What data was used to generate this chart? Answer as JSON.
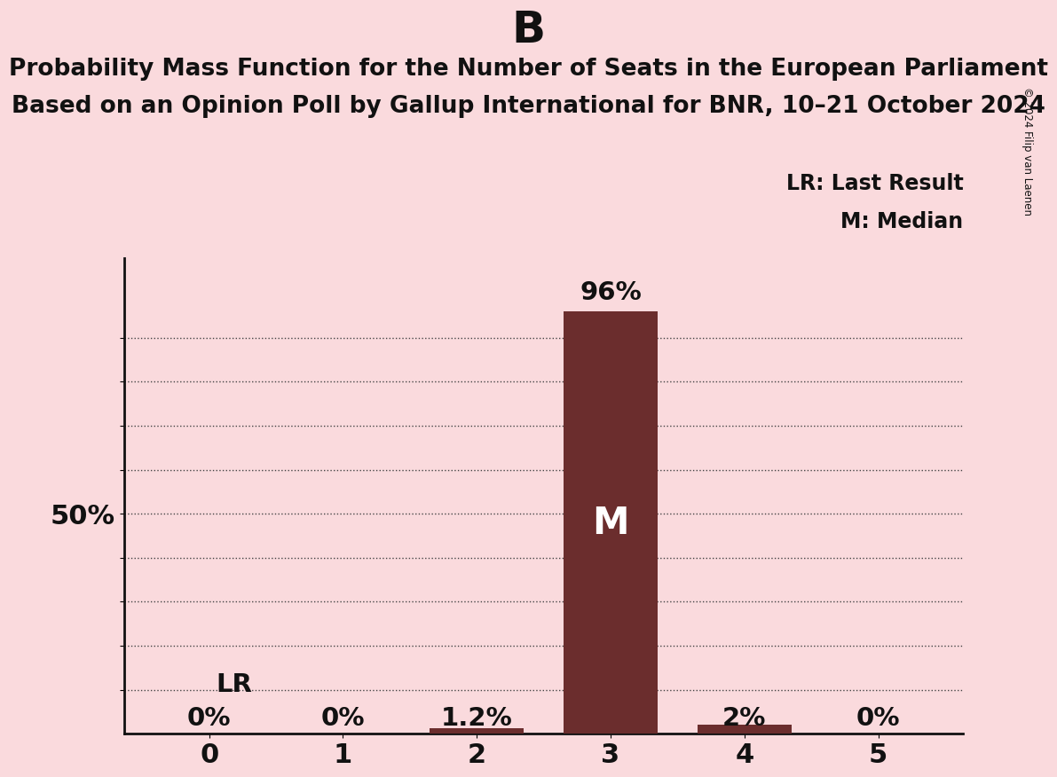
{
  "title_letter": "B",
  "title_line1": "Probability Mass Function for the Number of Seats in the European Parliament",
  "title_line2": "Based on an Opinion Poll by Gallup International for BNR, 10–21 October 2024",
  "categories": [
    0,
    1,
    2,
    3,
    4,
    5
  ],
  "values": [
    0.0,
    0.0,
    0.012,
    0.96,
    0.02,
    0.0
  ],
  "bar_color": "#6B2D2D",
  "background_color": "#FADADD",
  "label_color": "#111111",
  "bar_labels": [
    "0%",
    "0%",
    "1.2%",
    "96%",
    "2%",
    "0%"
  ],
  "median_bar": 3,
  "last_result_bar": 0,
  "median_label": "M",
  "lr_label": "LR",
  "legend_lr": "LR: Last Result",
  "legend_m": "M: Median",
  "ylabel_text": "50%",
  "ylim": [
    0,
    1.08
  ],
  "copyright": "© 2024 Filip van Laenen",
  "title_fontsize": 36,
  "subtitle_fontsize": 19,
  "tick_fontsize": 22,
  "label_fontsize": 21,
  "legend_fontsize": 17,
  "median_fontsize": 30
}
